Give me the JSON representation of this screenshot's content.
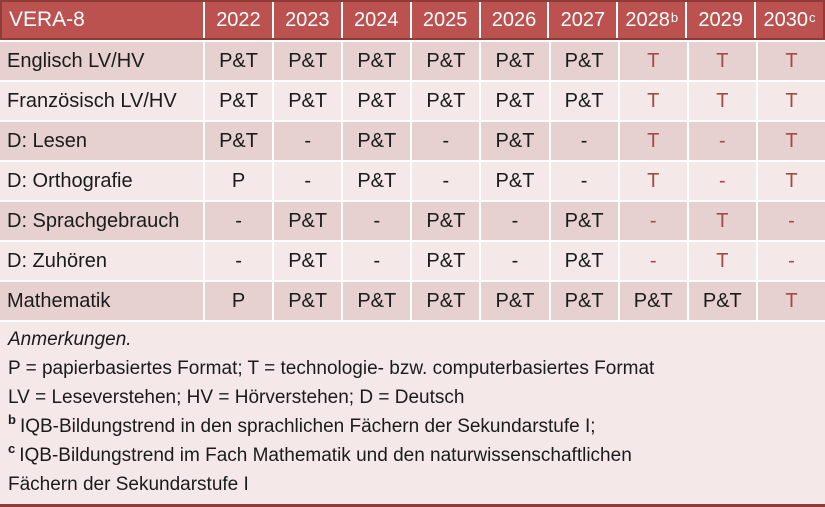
{
  "colors": {
    "header_fill": "#bc524f",
    "header_border": "#8e3b39",
    "band_dark": "#e6d0d0",
    "band_light": "#f4e8e8",
    "notes_bg": "#f4e8e8",
    "accent_text": "#a34a47",
    "text": "#1b1b1b",
    "header_text": "#ffffff",
    "separator": "#ffffff"
  },
  "table": {
    "title": "VERA-8",
    "year_headers": [
      {
        "label": "2022"
      },
      {
        "label": "2023"
      },
      {
        "label": "2024"
      },
      {
        "label": "2025"
      },
      {
        "label": "2026"
      },
      {
        "label": "2027"
      },
      {
        "label": "2028",
        "sup": "b"
      },
      {
        "label": "2029"
      },
      {
        "label": "2030",
        "sup": "c"
      }
    ],
    "rows": [
      {
        "label": "Englisch LV/HV",
        "cells": [
          {
            "v": "P&T"
          },
          {
            "v": "P&T"
          },
          {
            "v": "P&T"
          },
          {
            "v": "P&T"
          },
          {
            "v": "P&T"
          },
          {
            "v": "P&T"
          },
          {
            "v": "T",
            "red": true
          },
          {
            "v": "T",
            "red": true
          },
          {
            "v": "T",
            "red": true
          }
        ]
      },
      {
        "label": "Französisch LV/HV",
        "cells": [
          {
            "v": "P&T"
          },
          {
            "v": "P&T"
          },
          {
            "v": "P&T"
          },
          {
            "v": "P&T"
          },
          {
            "v": "P&T"
          },
          {
            "v": "P&T"
          },
          {
            "v": "T",
            "red": true
          },
          {
            "v": "T",
            "red": true
          },
          {
            "v": "T",
            "red": true
          }
        ]
      },
      {
        "label": "D: Lesen",
        "cells": [
          {
            "v": "P&T"
          },
          {
            "v": "-"
          },
          {
            "v": "P&T"
          },
          {
            "v": "-"
          },
          {
            "v": "P&T"
          },
          {
            "v": "-"
          },
          {
            "v": "T",
            "red": true
          },
          {
            "v": "-",
            "red": true
          },
          {
            "v": "T",
            "red": true
          }
        ]
      },
      {
        "label": "D: Orthografie",
        "cells": [
          {
            "v": "P"
          },
          {
            "v": "-"
          },
          {
            "v": "P&T"
          },
          {
            "v": "-"
          },
          {
            "v": "P&T"
          },
          {
            "v": "-"
          },
          {
            "v": "T",
            "red": true
          },
          {
            "v": "-",
            "red": true
          },
          {
            "v": "T",
            "red": true
          }
        ]
      },
      {
        "label": "D: Sprachgebrauch",
        "cells": [
          {
            "v": "-"
          },
          {
            "v": "P&T"
          },
          {
            "v": "-"
          },
          {
            "v": "P&T"
          },
          {
            "v": "-"
          },
          {
            "v": "P&T"
          },
          {
            "v": "-",
            "red": true
          },
          {
            "v": "T",
            "red": true
          },
          {
            "v": "-",
            "red": true
          }
        ]
      },
      {
        "label": "D: Zuhören",
        "cells": [
          {
            "v": "-"
          },
          {
            "v": "P&T"
          },
          {
            "v": "-"
          },
          {
            "v": "P&T"
          },
          {
            "v": "-"
          },
          {
            "v": "P&T"
          },
          {
            "v": "-",
            "red": true
          },
          {
            "v": "T",
            "red": true
          },
          {
            "v": "-",
            "red": true
          }
        ]
      },
      {
        "label": "Mathematik",
        "cells": [
          {
            "v": "P"
          },
          {
            "v": "P&T"
          },
          {
            "v": "P&T"
          },
          {
            "v": "P&T"
          },
          {
            "v": "P&T"
          },
          {
            "v": "P&T"
          },
          {
            "v": "P&T"
          },
          {
            "v": "P&T"
          },
          {
            "v": "T",
            "red": true
          }
        ]
      }
    ]
  },
  "notes": {
    "title": "Anmerkungen.",
    "lines": [
      {
        "text": "P = papierbasiertes Format; T = technologie- bzw. computerbasiertes Format"
      },
      {
        "text": "LV = Leseverstehen; HV = Hörverstehen; D = Deutsch"
      },
      {
        "sup": "b",
        "text": "IQB-Bildungstrend in den sprachlichen Fächern der Sekundarstufe I;"
      },
      {
        "sup": "c",
        "text": "IQB-Bildungstrend im Fach Mathematik und den naturwissenschaftlichen"
      },
      {
        "text": "Fächern der Sekundarstufe I"
      }
    ]
  }
}
